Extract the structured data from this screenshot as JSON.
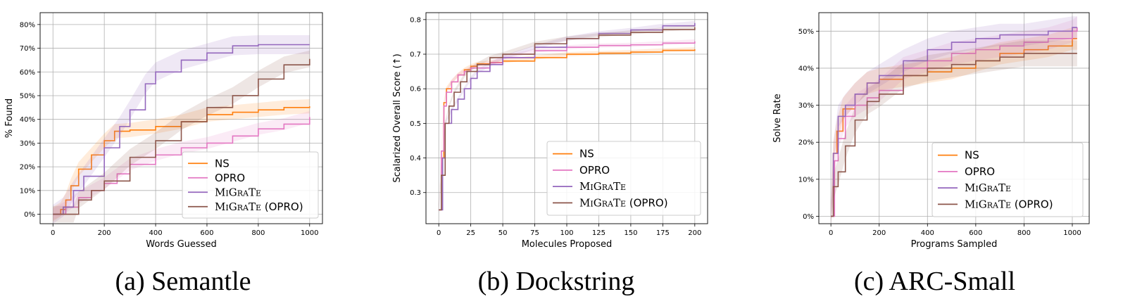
{
  "panels": [
    {
      "caption": "(a) Semantle",
      "chart_data": {
        "type": "line",
        "xlabel": "Words Guessed",
        "ylabel": "% Found",
        "xlim": [
          -50,
          1050
        ],
        "ylim": [
          -0.04,
          0.85
        ],
        "xticks": [
          0,
          200,
          400,
          600,
          800,
          1000
        ],
        "xtick_labels": [
          "0",
          "200",
          "400",
          "600",
          "800",
          "1000"
        ],
        "yticks": [
          0,
          0.1,
          0.2,
          0.3,
          0.4,
          0.5,
          0.6,
          0.7,
          0.8
        ],
        "ytick_labels": [
          "0%",
          "10%",
          "20%",
          "30%",
          "40%",
          "50%",
          "60%",
          "70%",
          "80%"
        ],
        "grid": true,
        "legend_position": "lower-right",
        "series": [
          {
            "name": "NS",
            "color": "#ff7f0e",
            "band": 0.03,
            "points": [
              [
                0,
                0
              ],
              [
                30,
                0.02
              ],
              [
                50,
                0.06
              ],
              [
                70,
                0.12
              ],
              [
                100,
                0.19
              ],
              [
                150,
                0.25
              ],
              [
                200,
                0.31
              ],
              [
                240,
                0.35
              ],
              [
                300,
                0.355
              ],
              [
                400,
                0.37
              ],
              [
                500,
                0.39
              ],
              [
                600,
                0.42
              ],
              [
                700,
                0.43
              ],
              [
                800,
                0.44
              ],
              [
                900,
                0.45
              ],
              [
                1000,
                0.455
              ]
            ]
          },
          {
            "name": "OPRO",
            "color": "#e377c2",
            "band": 0.025,
            "points": [
              [
                0,
                0
              ],
              [
                50,
                0.03
              ],
              [
                100,
                0.07
              ],
              [
                150,
                0.1
              ],
              [
                200,
                0.13
              ],
              [
                250,
                0.17
              ],
              [
                300,
                0.21
              ],
              [
                400,
                0.25
              ],
              [
                500,
                0.28
              ],
              [
                600,
                0.3
              ],
              [
                700,
                0.33
              ],
              [
                800,
                0.36
              ],
              [
                900,
                0.38
              ],
              [
                1000,
                0.41
              ]
            ]
          },
          {
            "name": "MiGrATe",
            "color": "#9467bd",
            "band": 0.04,
            "points": [
              [
                0,
                0
              ],
              [
                40,
                0.03
              ],
              [
                80,
                0.1
              ],
              [
                120,
                0.16
              ],
              [
                200,
                0.28
              ],
              [
                260,
                0.37
              ],
              [
                300,
                0.44
              ],
              [
                360,
                0.55
              ],
              [
                400,
                0.6
              ],
              [
                500,
                0.65
              ],
              [
                600,
                0.68
              ],
              [
                700,
                0.71
              ],
              [
                800,
                0.715
              ],
              [
                1000,
                0.715
              ]
            ]
          },
          {
            "name": "MiGrATe (OPRO)",
            "color": "#8c564b",
            "band": 0.035,
            "points": [
              [
                0,
                0
              ],
              [
                80,
                0
              ],
              [
                100,
                0.06
              ],
              [
                150,
                0.1
              ],
              [
                200,
                0.14
              ],
              [
                300,
                0.24
              ],
              [
                400,
                0.31
              ],
              [
                500,
                0.39
              ],
              [
                600,
                0.45
              ],
              [
                700,
                0.5
              ],
              [
                800,
                0.57
              ],
              [
                900,
                0.63
              ],
              [
                1000,
                0.655
              ]
            ]
          }
        ]
      }
    },
    {
      "caption": "(b) Dockstring",
      "chart_data": {
        "type": "line",
        "xlabel": "Molecules Proposed",
        "ylabel": "Scalarized Overall Score (↑)",
        "xlim": [
          -10,
          210
        ],
        "ylim": [
          0.21,
          0.82
        ],
        "xticks": [
          0,
          25,
          50,
          75,
          100,
          125,
          150,
          175,
          200
        ],
        "xtick_labels": [
          "0",
          "25",
          "50",
          "75",
          "100",
          "125",
          "150",
          "175",
          "200"
        ],
        "yticks": [
          0.3,
          0.4,
          0.5,
          0.6,
          0.7,
          0.8
        ],
        "ytick_labels": [
          "0.3",
          "0.4",
          "0.5",
          "0.6",
          "0.7",
          "0.8"
        ],
        "grid": true,
        "legend_position": "lower-right",
        "series": [
          {
            "name": "NS",
            "color": "#ff7f0e",
            "band": 0.006,
            "points": [
              [
                0,
                0.25
              ],
              [
                2,
                0.4
              ],
              [
                4,
                0.56
              ],
              [
                6,
                0.6
              ],
              [
                10,
                0.62
              ],
              [
                15,
                0.64
              ],
              [
                20,
                0.655
              ],
              [
                25,
                0.665
              ],
              [
                30,
                0.672
              ],
              [
                40,
                0.676
              ],
              [
                50,
                0.68
              ],
              [
                75,
                0.69
              ],
              [
                100,
                0.7
              ],
              [
                125,
                0.703
              ],
              [
                150,
                0.706
              ],
              [
                175,
                0.711
              ],
              [
                200,
                0.714
              ]
            ]
          },
          {
            "name": "OPRO",
            "color": "#e377c2",
            "band": 0.006,
            "points": [
              [
                0,
                0.25
              ],
              [
                2,
                0.42
              ],
              [
                4,
                0.55
              ],
              [
                6,
                0.59
              ],
              [
                10,
                0.62
              ],
              [
                15,
                0.64
              ],
              [
                20,
                0.65
              ],
              [
                25,
                0.66
              ],
              [
                40,
                0.675
              ],
              [
                50,
                0.69
              ],
              [
                75,
                0.71
              ],
              [
                100,
                0.72
              ],
              [
                125,
                0.725
              ],
              [
                150,
                0.727
              ],
              [
                175,
                0.732
              ],
              [
                200,
                0.737
              ]
            ]
          },
          {
            "name": "MiGrATe",
            "color": "#9467bd",
            "band": 0.006,
            "points": [
              [
                0,
                0.25
              ],
              [
                3,
                0.4
              ],
              [
                5,
                0.5
              ],
              [
                10,
                0.54
              ],
              [
                15,
                0.57
              ],
              [
                20,
                0.6
              ],
              [
                25,
                0.63
              ],
              [
                30,
                0.65
              ],
              [
                40,
                0.67
              ],
              [
                50,
                0.69
              ],
              [
                75,
                0.72
              ],
              [
                100,
                0.745
              ],
              [
                125,
                0.76
              ],
              [
                150,
                0.77
              ],
              [
                175,
                0.782
              ],
              [
                200,
                0.79
              ]
            ]
          },
          {
            "name": "MiGrATe (OPRO)",
            "color": "#8c564b",
            "band": 0.006,
            "points": [
              [
                0,
                0.25
              ],
              [
                2,
                0.35
              ],
              [
                5,
                0.5
              ],
              [
                8,
                0.55
              ],
              [
                12,
                0.59
              ],
              [
                17,
                0.62
              ],
              [
                22,
                0.65
              ],
              [
                30,
                0.67
              ],
              [
                40,
                0.69
              ],
              [
                50,
                0.7
              ],
              [
                75,
                0.73
              ],
              [
                100,
                0.745
              ],
              [
                125,
                0.755
              ],
              [
                150,
                0.763
              ],
              [
                175,
                0.771
              ],
              [
                200,
                0.778
              ]
            ]
          }
        ]
      }
    },
    {
      "caption": "(c) ARC-Small",
      "chart_data": {
        "type": "line",
        "xlabel": "Programs Sampled",
        "ylabel": "Solve Rate",
        "xlim": [
          -50,
          1070
        ],
        "ylim": [
          -0.02,
          0.55
        ],
        "xticks": [
          0,
          200,
          400,
          600,
          800,
          1000
        ],
        "xtick_labels": [
          "0",
          "200",
          "400",
          "600",
          "800",
          "1000"
        ],
        "yticks": [
          0,
          0.1,
          0.2,
          0.3,
          0.4,
          0.5
        ],
        "ytick_labels": [
          "0%",
          "10%",
          "20%",
          "30%",
          "40%",
          "50%"
        ],
        "grid": true,
        "legend_position": "lower-right",
        "series": [
          {
            "name": "NS",
            "color": "#ff7f0e",
            "band": 0.03,
            "points": [
              [
                0,
                0
              ],
              [
                10,
                0.17
              ],
              [
                25,
                0.23
              ],
              [
                50,
                0.29
              ],
              [
                100,
                0.33
              ],
              [
                150,
                0.36
              ],
              [
                200,
                0.37
              ],
              [
                300,
                0.38
              ],
              [
                400,
                0.39
              ],
              [
                500,
                0.4
              ],
              [
                600,
                0.42
              ],
              [
                700,
                0.44
              ],
              [
                800,
                0.45
              ],
              [
                900,
                0.46
              ],
              [
                1000,
                0.48
              ],
              [
                1020,
                0.48
              ]
            ]
          },
          {
            "name": "OPRO",
            "color": "#e377c2",
            "band": 0.03,
            "points": [
              [
                0,
                0
              ],
              [
                15,
                0.15
              ],
              [
                30,
                0.21
              ],
              [
                60,
                0.27
              ],
              [
                100,
                0.3
              ],
              [
                150,
                0.32
              ],
              [
                200,
                0.34
              ],
              [
                300,
                0.4
              ],
              [
                400,
                0.42
              ],
              [
                500,
                0.44
              ],
              [
                600,
                0.45
              ],
              [
                700,
                0.46
              ],
              [
                800,
                0.47
              ],
              [
                900,
                0.48
              ],
              [
                1000,
                0.5
              ],
              [
                1020,
                0.51
              ]
            ]
          },
          {
            "name": "MiGrATe",
            "color": "#9467bd",
            "band": 0.03,
            "points": [
              [
                0,
                0
              ],
              [
                10,
                0.17
              ],
              [
                30,
                0.27
              ],
              [
                60,
                0.3
              ],
              [
                100,
                0.33
              ],
              [
                150,
                0.36
              ],
              [
                200,
                0.38
              ],
              [
                300,
                0.42
              ],
              [
                400,
                0.45
              ],
              [
                500,
                0.47
              ],
              [
                600,
                0.48
              ],
              [
                700,
                0.49
              ],
              [
                800,
                0.49
              ],
              [
                900,
                0.5
              ],
              [
                1000,
                0.51
              ],
              [
                1020,
                0.51
              ]
            ]
          },
          {
            "name": "MiGrATe (OPRO)",
            "color": "#8c564b",
            "band": 0.035,
            "points": [
              [
                0,
                0
              ],
              [
                10,
                0.08
              ],
              [
                30,
                0.12
              ],
              [
                60,
                0.19
              ],
              [
                100,
                0.26
              ],
              [
                150,
                0.31
              ],
              [
                200,
                0.33
              ],
              [
                300,
                0.38
              ],
              [
                400,
                0.4
              ],
              [
                500,
                0.41
              ],
              [
                600,
                0.42
              ],
              [
                700,
                0.43
              ],
              [
                800,
                0.44
              ],
              [
                900,
                0.44
              ],
              [
                1020,
                0.44
              ]
            ]
          }
        ]
      }
    }
  ]
}
